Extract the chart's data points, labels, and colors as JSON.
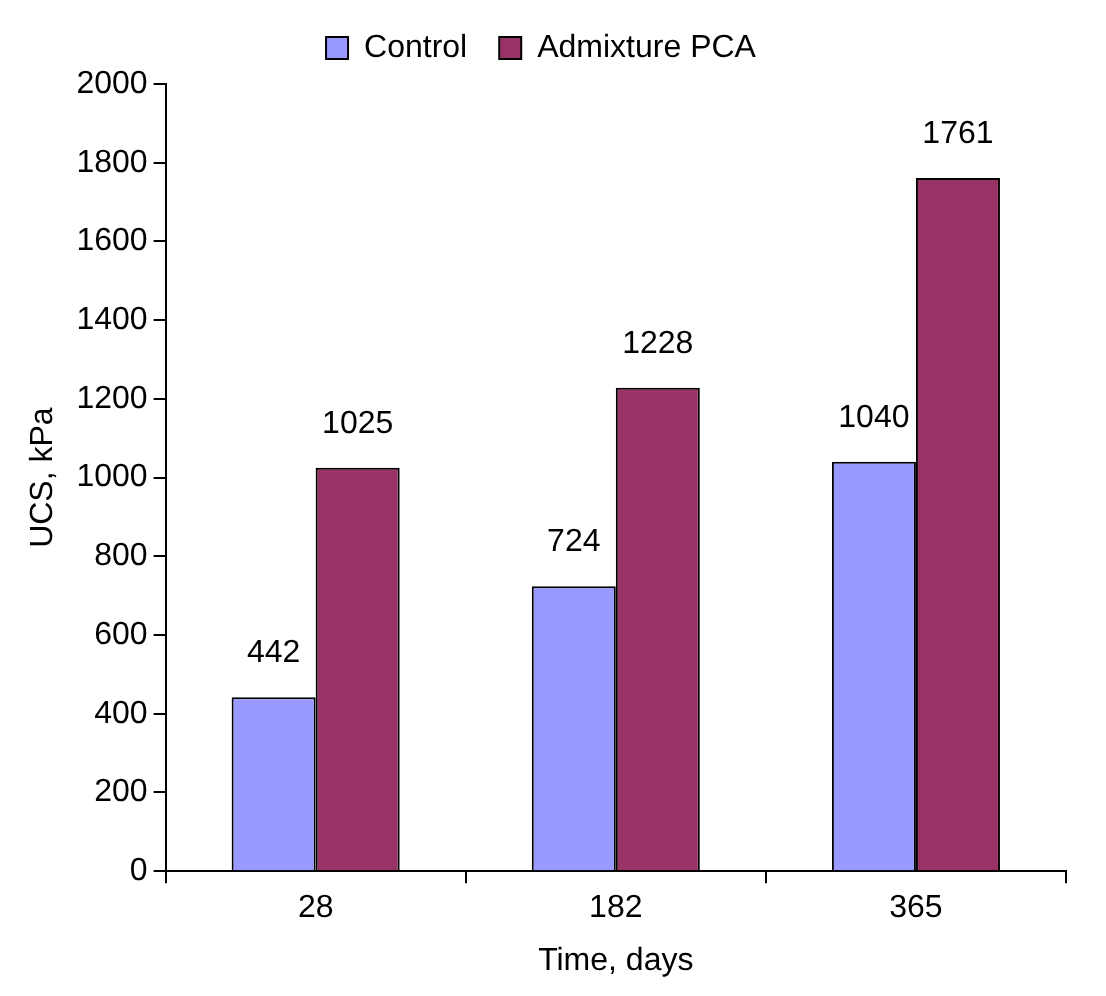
{
  "chart_data": {
    "type": "bar",
    "xlabel": "Time, days",
    "ylabel": "UCS, kPa",
    "categories": [
      "28",
      "182",
      "365"
    ],
    "series": [
      {
        "name": "Control",
        "color": "#9999ff",
        "values": [
          442,
          724,
          1040
        ]
      },
      {
        "name": "Admixture PCA",
        "color": "#993366",
        "values": [
          1025,
          1228,
          1761
        ]
      }
    ],
    "ylim": [
      0,
      2000
    ],
    "yticks": [
      0,
      200,
      400,
      600,
      800,
      1000,
      1200,
      1400,
      1600,
      1800,
      2000
    ],
    "legend": "top",
    "data_labels": true
  }
}
